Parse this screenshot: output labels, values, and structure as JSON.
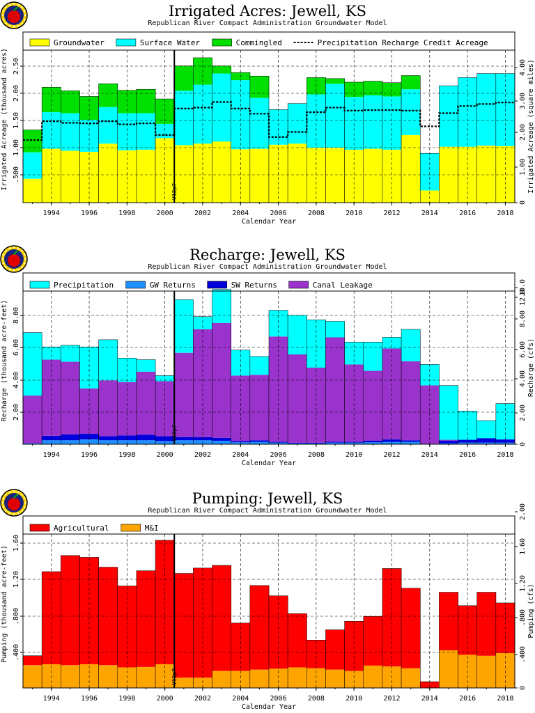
{
  "app": {
    "brand": {
      "logo_icon": "apple-logo-icon"
    },
    "colors": {
      "grid": "#000000",
      "frame": "#000000"
    },
    "version_label": "V12p7"
  },
  "chart_data": [
    {
      "id": "irrigated",
      "type": "bar",
      "stacked": true,
      "title": "Irrigated Acres: Jewell, KS",
      "subtitle": "Republican River Compact Administration Groundwater Model",
      "xlabel": "Calendar Year",
      "ylabel": "Irrigated Acreage (thousand acres)",
      "y2label": "Irrigated Acreage (square miles)",
      "x": [
        1993,
        1994,
        1995,
        1996,
        1997,
        1998,
        1999,
        2000,
        2001,
        2002,
        2003,
        2004,
        2005,
        2006,
        2007,
        2008,
        2009,
        2010,
        2011,
        2012,
        2013,
        2014,
        2015,
        2016,
        2017,
        2018
      ],
      "x_ticks": [
        "1994",
        "1996",
        "1998",
        "2000",
        "2002",
        "2004",
        "2006",
        "2008",
        "2010",
        "2012",
        "2014",
        "2016",
        "2018"
      ],
      "ylim": [
        0,
        3.0
      ],
      "y_ticks": [
        ".500",
        "1.00",
        "1.50",
        "2.00",
        "2.50"
      ],
      "y2lim": [
        0,
        4.6875
      ],
      "y2_ticks": [
        "0",
        "1.00",
        "2.00",
        "3.00",
        "4.00"
      ],
      "legend": [
        "Groundwater",
        "Surface Water",
        "Commingled",
        "Precipitation Recharge Credit Acreage"
      ],
      "series": [
        {
          "name": "Groundwater",
          "color": "#ffff00",
          "values": [
            0.47,
            1.06,
            1.02,
            1.0,
            1.16,
            1.03,
            1.04,
            1.27,
            1.13,
            1.16,
            1.2,
            1.05,
            1.06,
            1.14,
            1.16,
            1.08,
            1.08,
            1.04,
            1.06,
            1.04,
            1.33,
            0.24,
            1.1,
            1.1,
            1.12,
            1.11
          ]
        },
        {
          "name": "Surface Water",
          "color": "#00ffff",
          "values": [
            0.52,
            0.72,
            0.74,
            0.63,
            0.72,
            0.73,
            0.72,
            0.28,
            1.07,
            1.16,
            1.34,
            1.36,
            1.0,
            0.69,
            0.79,
            1.05,
            1.26,
            1.04,
            1.05,
            1.05,
            0.9,
            0.73,
            1.2,
            1.36,
            1.42,
            1.43
          ]
        },
        {
          "name": "Commingled",
          "color": "#00e000",
          "values": [
            0.44,
            0.49,
            0.44,
            0.46,
            0.46,
            0.45,
            0.47,
            0.49,
            0.49,
            0.53,
            0.15,
            0.15,
            0.43,
            0.0,
            0.0,
            0.33,
            0.1,
            0.29,
            0.28,
            0.27,
            0.27,
            0.0,
            0.0,
            0.0,
            0.0,
            0.0
          ]
        },
        {
          "name": "Precipitation Recharge Credit Acreage",
          "style": "dotted-line",
          "values": [
            1.23,
            1.6,
            1.57,
            1.56,
            1.6,
            1.54,
            1.56,
            1.33,
            1.85,
            1.87,
            1.98,
            1.85,
            1.75,
            1.29,
            1.39,
            1.78,
            1.87,
            1.81,
            1.82,
            1.82,
            1.81,
            1.5,
            1.76,
            1.9,
            1.94,
            1.97
          ]
        }
      ]
    },
    {
      "id": "recharge",
      "type": "bar",
      "stacked": true,
      "title": "Recharge: Jewell, KS",
      "subtitle": "Republican River Compact Administration Groundwater Model",
      "xlabel": "Calendar Year",
      "ylabel": "Recharge (thousand acre-feet)",
      "y2label": "Recharge (cfs)",
      "x": [
        1993,
        1994,
        1995,
        1996,
        1997,
        1998,
        1999,
        2000,
        2001,
        2002,
        2003,
        2004,
        2005,
        2006,
        2007,
        2008,
        2009,
        2010,
        2011,
        2012,
        2013,
        2014,
        2015,
        2016,
        2017,
        2018
      ],
      "x_ticks": [
        "1994",
        "1996",
        "1998",
        "2000",
        "2002",
        "2004",
        "2006",
        "2008",
        "2010",
        "2012",
        "2014",
        "2016",
        "2018"
      ],
      "ylim": [
        0,
        9.6
      ],
      "y_ticks": [
        "2.00",
        "4.00",
        "6.00",
        "8.00"
      ],
      "y2lim": [
        0,
        13.26
      ],
      "y2_ticks": [
        "0",
        "2.00",
        "4.00",
        "6.00",
        "8.00",
        "10.0",
        "12.0"
      ],
      "legend": [
        "Precipitation",
        "GW Returns",
        "SW Returns",
        "Canal Leakage"
      ],
      "series": [
        {
          "name": "GW Returns",
          "color": "#1e90ff",
          "values": [
            0.05,
            0.25,
            0.25,
            0.3,
            0.25,
            0.25,
            0.25,
            0.2,
            0.25,
            0.25,
            0.22,
            0.12,
            0.15,
            0.1,
            0.05,
            0.05,
            0.1,
            0.1,
            0.12,
            0.15,
            0.15,
            0.02,
            0.05,
            0.1,
            0.1,
            0.1
          ]
        },
        {
          "name": "SW Returns",
          "color": "#0000dd",
          "values": [
            0.02,
            0.28,
            0.37,
            0.35,
            0.25,
            0.3,
            0.35,
            0.3,
            0.2,
            0.2,
            0.18,
            0.08,
            0.1,
            0.05,
            0.05,
            0.05,
            0.05,
            0.05,
            0.1,
            0.15,
            0.1,
            0.01,
            0.18,
            0.18,
            0.28,
            0.2
          ]
        },
        {
          "name": "Canal Leakage",
          "color": "#9933cc",
          "values": [
            2.98,
            4.77,
            4.55,
            2.85,
            3.5,
            3.35,
            3.95,
            3.45,
            5.28,
            6.75,
            7.2,
            4.1,
            4.1,
            6.6,
            5.53,
            4.7,
            6.55,
            4.85,
            4.38,
            5.7,
            4.95,
            3.66,
            0.05,
            0.0,
            0.0,
            0.0
          ]
        },
        {
          "name": "Precipitation",
          "color": "#00ffff",
          "values": [
            3.95,
            0.8,
            1.03,
            2.6,
            2.55,
            1.5,
            0.75,
            0.35,
            3.33,
            0.8,
            2.1,
            1.6,
            1.15,
            1.65,
            2.45,
            3.0,
            1.0,
            1.4,
            1.8,
            0.7,
            2.0,
            1.31,
            3.4,
            1.8,
            1.1,
            2.25
          ]
        }
      ]
    },
    {
      "id": "pumping",
      "type": "bar",
      "stacked": true,
      "title": "Pumping: Jewell, KS",
      "subtitle": "Republican River Compact Administration Groundwater Model",
      "xlabel": "Calendar Year",
      "ylabel": "Pumping (thousand acre-feet)",
      "y2label": "Pumping (cfs)",
      "x": [
        1993,
        1994,
        1995,
        1996,
        1997,
        1998,
        1999,
        2000,
        2001,
        2002,
        2003,
        2004,
        2005,
        2006,
        2007,
        2008,
        2009,
        2010,
        2011,
        2012,
        2013,
        2014,
        2015,
        2016,
        2017,
        2018
      ],
      "x_ticks": [
        "1994",
        "1996",
        "1998",
        "2000",
        "2002",
        "2004",
        "2006",
        "2008",
        "2010",
        "2012",
        "2014",
        "2016",
        "2018"
      ],
      "ylim": [
        0,
        1.72
      ],
      "y_ticks": [
        ".400",
        ".800",
        "1.20",
        "1.60"
      ],
      "y2lim": [
        0,
        2.375
      ],
      "y2_ticks": [
        "0",
        ".400",
        ".800",
        "1.20",
        "1.60",
        "2.00"
      ],
      "legend": [
        "Agricultural",
        "M&I"
      ],
      "series": [
        {
          "name": "M&I",
          "color": "#ffa500",
          "values": [
            0.255,
            0.265,
            0.255,
            0.265,
            0.255,
            0.23,
            0.235,
            0.265,
            0.115,
            0.115,
            0.19,
            0.19,
            0.205,
            0.215,
            0.23,
            0.22,
            0.205,
            0.19,
            0.25,
            0.24,
            0.22,
            0.0,
            0.42,
            0.37,
            0.36,
            0.39
          ]
        },
        {
          "name": "Agricultural",
          "color": "#ff0000",
          "values": [
            0.105,
            1.035,
            1.225,
            1.195,
            1.095,
            0.91,
            1.075,
            1.385,
            1.165,
            1.225,
            1.18,
            0.535,
            0.94,
            0.815,
            0.6,
            0.315,
            0.445,
            0.555,
            0.55,
            1.095,
            0.895,
            0.07,
            0.65,
            0.55,
            0.71,
            0.56
          ]
        }
      ]
    }
  ]
}
